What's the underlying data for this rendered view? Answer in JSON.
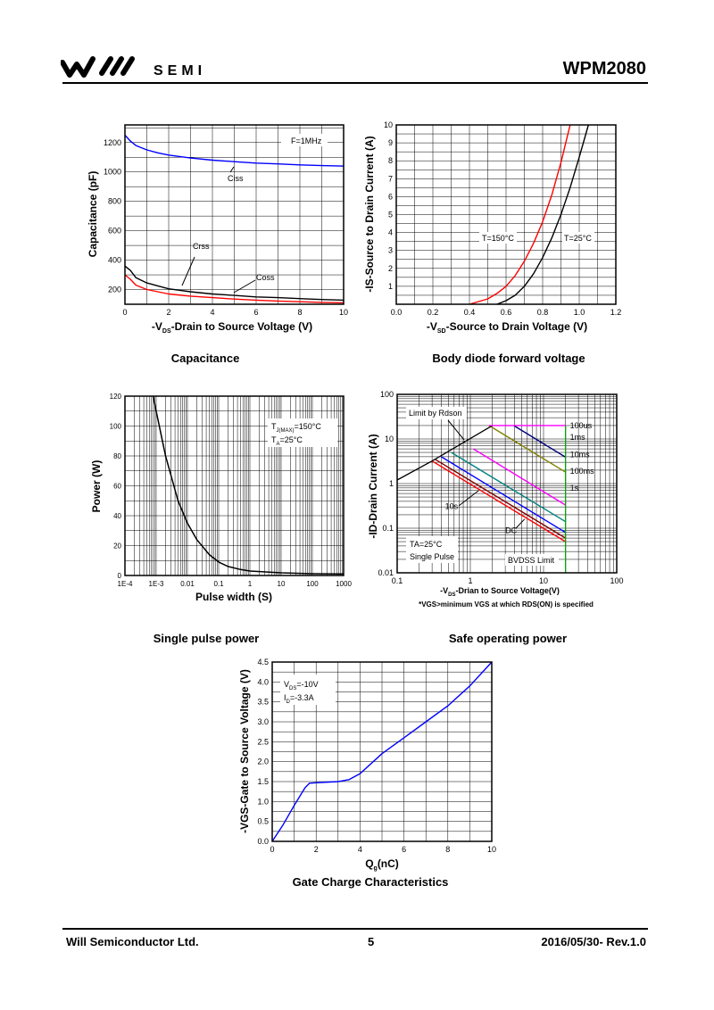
{
  "header": {
    "logo_text": "SEMI",
    "part_number": "WPM2080"
  },
  "footer": {
    "company": "Will Semiconductor Ltd.",
    "page": "5",
    "date_rev": "2016/05/30- Rev.1.0"
  },
  "captions": {
    "capacitance": "Capacitance",
    "body_diode": "Body diode forward voltage",
    "pulse_power": "Single pulse power",
    "soa": "Safe operating power",
    "gate_charge": "Gate Charge Characteristics"
  },
  "chart_data": [
    {
      "id": "capacitance",
      "type": "line",
      "xlabel": "-VDS-Drain to Source Voltage (V)",
      "ylabel": "Capacitance (pF)",
      "xlim": [
        0,
        10
      ],
      "ylim": [
        100,
        1320
      ],
      "xticks": [
        0,
        2,
        4,
        6,
        8,
        10
      ],
      "yticks": [
        200,
        400,
        600,
        800,
        1000,
        1200
      ],
      "annotation": "F=1MHz",
      "series": [
        {
          "name": "Ciss",
          "color": "#0000ff",
          "x": [
            0,
            0.25,
            0.5,
            1,
            1.5,
            2,
            3,
            4,
            5,
            6,
            7,
            8,
            9,
            10
          ],
          "values": [
            1250,
            1210,
            1180,
            1150,
            1130,
            1115,
            1095,
            1080,
            1070,
            1060,
            1055,
            1048,
            1043,
            1040
          ]
        },
        {
          "name": "Crss",
          "color": "#000000",
          "x": [
            0,
            0.25,
            0.5,
            1,
            1.5,
            2,
            3,
            4,
            5,
            6,
            7,
            8,
            9,
            10
          ],
          "values": [
            360,
            330,
            280,
            245,
            225,
            205,
            185,
            170,
            160,
            150,
            145,
            138,
            132,
            128
          ]
        },
        {
          "name": "Coss",
          "color": "#ff0000",
          "x": [
            0,
            0.25,
            0.5,
            1,
            1.5,
            2,
            3,
            4,
            5,
            6,
            7,
            8,
            9,
            10
          ],
          "values": [
            300,
            270,
            230,
            200,
            185,
            170,
            155,
            145,
            135,
            128,
            122,
            117,
            113,
            110
          ]
        }
      ]
    },
    {
      "id": "body-diode",
      "type": "line",
      "xlabel": "-VSD-Source to Drain Voltage (V)",
      "ylabel": "-IS-Source to Drain Current (A)",
      "xlim": [
        0,
        1.2
      ],
      "ylim": [
        0,
        10
      ],
      "xticks": [
        0.0,
        0.2,
        0.4,
        0.6,
        0.8,
        1.0,
        1.2
      ],
      "yticks": [
        1,
        2,
        3,
        4,
        5,
        6,
        7,
        8,
        9,
        10
      ],
      "series": [
        {
          "name": "T=150°C",
          "color": "#ff0000",
          "x": [
            0.4,
            0.5,
            0.55,
            0.6,
            0.65,
            0.7,
            0.75,
            0.8,
            0.85,
            0.9,
            0.95
          ],
          "values": [
            0,
            0.3,
            0.6,
            1.0,
            1.6,
            2.4,
            3.4,
            4.6,
            6.1,
            7.9,
            10
          ]
        },
        {
          "name": "T=25°C",
          "color": "#000000",
          "x": [
            0.55,
            0.6,
            0.65,
            0.7,
            0.75,
            0.8,
            0.85,
            0.9,
            0.95,
            1.0,
            1.05
          ],
          "values": [
            0,
            0.2,
            0.5,
            1.0,
            1.7,
            2.6,
            3.7,
            5.0,
            6.5,
            8.2,
            10
          ]
        }
      ]
    },
    {
      "id": "pulse-power",
      "type": "line",
      "xlabel": "Pulse width (S)",
      "ylabel": "Power (W)",
      "xscale": "log",
      "xlim": [
        0.0001,
        1000
      ],
      "ylim": [
        0,
        120
      ],
      "xticks": [
        "1E-4",
        "1E-3",
        "0.01",
        "0.1",
        "1",
        "10",
        "100",
        "1000"
      ],
      "yticks": [
        0,
        20,
        40,
        60,
        80,
        100,
        120
      ],
      "annotations": [
        "TJ(MAX)=150°C",
        "TA=25°C"
      ],
      "series": [
        {
          "name": "Power",
          "color": "#000000",
          "x": [
            0.0008,
            0.001,
            0.002,
            0.005,
            0.01,
            0.02,
            0.05,
            0.1,
            0.2,
            0.5,
            1,
            10,
            100,
            1000
          ],
          "values": [
            120,
            110,
            80,
            50,
            35,
            24,
            14,
            9,
            6,
            4,
            3,
            1.8,
            1.2,
            1
          ]
        }
      ]
    },
    {
      "id": "soa",
      "type": "line",
      "xlabel": "-VDS-Drian to Source Voltage(V)",
      "ylabel": "-ID-Drain Current (A)",
      "xscale": "log",
      "yscale": "log",
      "xlim": [
        0.1,
        100
      ],
      "ylim": [
        0.01,
        100
      ],
      "xticks": [
        "0.1",
        "1",
        "10",
        "100"
      ],
      "yticks": [
        "0.01",
        "0.1",
        "1",
        "10",
        "100"
      ],
      "footnote": "*VGS>minimum VGS at which RDS(ON) is specified",
      "annotations": [
        "Limit by Rdson",
        "TA=25°C",
        "Single Pulse",
        "BVDSS Limit"
      ],
      "series": [
        {
          "name": "100us",
          "color": "#000080",
          "x": [
            3.9,
            20
          ],
          "values": [
            20,
            3.9
          ]
        },
        {
          "name": "1ms",
          "color": "#808000",
          "x": [
            1.8,
            20
          ],
          "values": [
            20,
            1.8
          ]
        },
        {
          "name": "10ms",
          "color": "#ff00ff",
          "x": [
            1.1,
            20
          ],
          "values": [
            6,
            0.33
          ]
        },
        {
          "name": "100ms",
          "color": "#008080",
          "x": [
            0.55,
            20
          ],
          "values": [
            5,
            0.14
          ]
        },
        {
          "name": "1s",
          "color": "#0000ff",
          "x": [
            0.4,
            20
          ],
          "values": [
            4,
            0.08
          ]
        },
        {
          "name": "10s",
          "color": "#800000",
          "x": [
            0.33,
            20
          ],
          "values": [
            3.5,
            0.06
          ]
        },
        {
          "name": "DC",
          "color": "#ff0000",
          "x": [
            0.3,
            20
          ],
          "values": [
            3.2,
            0.05
          ]
        }
      ],
      "labels": [
        "Limit by Rdson",
        "100us",
        "1ms",
        "10ms",
        "100ms",
        "1s",
        "10s",
        "DC",
        "BVDSS Limit",
        "TA=25°C",
        "Single Pulse"
      ]
    },
    {
      "id": "gate-charge",
      "type": "line",
      "xlabel": "Qg(nC)",
      "ylabel": "-VGS-Gate to Source Voltage (V)",
      "xlim": [
        0,
        10
      ],
      "ylim": [
        0,
        4.5
      ],
      "xticks": [
        0,
        2,
        4,
        6,
        8,
        10
      ],
      "yticks": [
        0.0,
        0.5,
        1.0,
        1.5,
        2.0,
        2.5,
        3.0,
        3.5,
        4.0,
        4.5
      ],
      "annotations": [
        "VDS=-10V",
        "ID=-3.3A"
      ],
      "series": [
        {
          "name": "VGS",
          "color": "#0000ff",
          "x": [
            0,
            0.5,
            1,
            1.5,
            1.7,
            2,
            3,
            3.5,
            4,
            5,
            6,
            7,
            8,
            9,
            10
          ],
          "values": [
            0,
            0.42,
            0.9,
            1.35,
            1.46,
            1.47,
            1.5,
            1.55,
            1.7,
            2.2,
            2.6,
            3.0,
            3.4,
            3.9,
            4.5
          ]
        }
      ]
    }
  ],
  "text": {
    "cap_ciss": "Ciss",
    "cap_crss": "Crss",
    "cap_coss": "Coss",
    "cap_freq": "F=1MHz",
    "bd_t150": "T=150°C",
    "bd_t25": "T=25°C",
    "pp_tj": "TJ(MAX)=150°C",
    "pp_ta": "TA=25°C",
    "soa_rds": "Limit by Rdson",
    "soa_ta": "TA=25°C",
    "soa_sp": "Single Pulse",
    "soa_bv": "BVDSS Limit",
    "soa_foot": "*VGS>minimum VGS at which RDS(ON) is specified",
    "gc_vds": "VDS=-10V",
    "gc_id": "ID=-3.3A"
  }
}
